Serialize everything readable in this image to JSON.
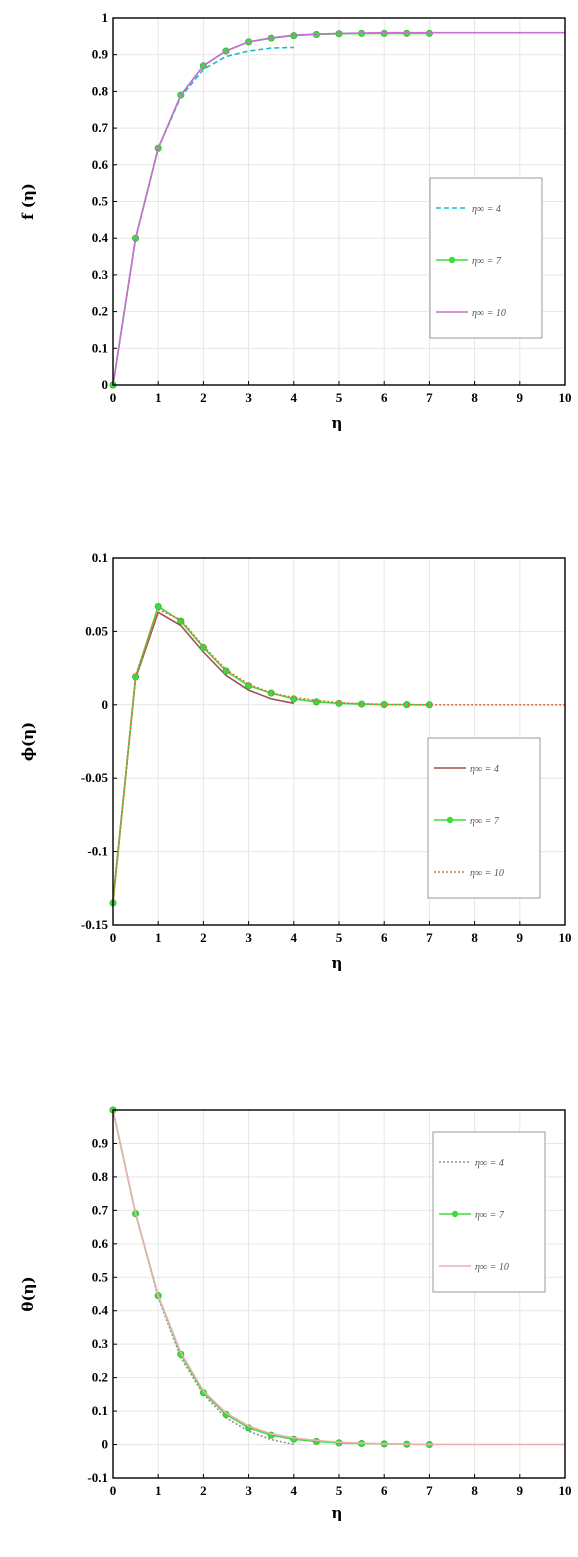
{
  "chart_data": [
    {
      "type": "line",
      "ylabel": "f (η)",
      "xlabel": "η",
      "xlim": [
        0,
        10
      ],
      "ylim": [
        0,
        1
      ],
      "xticks": [
        "0",
        "1",
        "2",
        "3",
        "4",
        "5",
        "6",
        "7",
        "8",
        "9",
        "10"
      ],
      "yticks": [
        "0",
        "0.1",
        "0.2",
        "0.3",
        "0.4",
        "0.5",
        "0.6",
        "0.7",
        "0.8",
        "0.9",
        "1"
      ],
      "grid": true,
      "legend_position": "right",
      "series": [
        {
          "name": "η∞ = 4",
          "style": "dashed",
          "color": "#1fb8d0",
          "x": [
            0,
            0.5,
            1,
            1.5,
            2,
            2.5,
            3,
            3.5,
            4
          ],
          "y": [
            0,
            0.4,
            0.645,
            0.785,
            0.86,
            0.895,
            0.91,
            0.918,
            0.92
          ]
        },
        {
          "name": "η∞ = 7",
          "style": "markers",
          "color": "#3ddc3d",
          "x": [
            0,
            0.5,
            1,
            1.5,
            2,
            2.5,
            3,
            3.5,
            4,
            4.5,
            5,
            5.5,
            6,
            6.5,
            7
          ],
          "y": [
            0,
            0.4,
            0.645,
            0.79,
            0.87,
            0.91,
            0.935,
            0.945,
            0.952,
            0.955,
            0.957,
            0.958,
            0.958,
            0.958,
            0.958
          ]
        },
        {
          "name": "η∞ = 10",
          "style": "solid",
          "color": "#c86fd0",
          "x": [
            0,
            0.5,
            1,
            1.5,
            2,
            2.5,
            3,
            3.5,
            4,
            4.5,
            5,
            5.5,
            6,
            6.5,
            7,
            8,
            9,
            10
          ],
          "y": [
            0,
            0.4,
            0.645,
            0.79,
            0.87,
            0.91,
            0.935,
            0.946,
            0.953,
            0.956,
            0.958,
            0.959,
            0.96,
            0.96,
            0.96,
            0.96,
            0.96,
            0.96
          ]
        }
      ]
    },
    {
      "type": "line",
      "ylabel": "ϕ(η)",
      "xlabel": "η",
      "xlim": [
        0,
        10
      ],
      "ylim": [
        -0.15,
        0.1
      ],
      "xticks": [
        "0",
        "1",
        "2",
        "3",
        "4",
        "5",
        "6",
        "7",
        "8",
        "9",
        "10"
      ],
      "yticks": [
        "-0.15",
        "-0.1",
        "-0.05",
        "0",
        "0.05",
        "0.1"
      ],
      "grid": true,
      "legend_position": "right",
      "series": [
        {
          "name": "η∞ = 4",
          "style": "solid",
          "color": "#a05050",
          "x": [
            0,
            0.5,
            1,
            1.5,
            2,
            2.5,
            3,
            3.5,
            4
          ],
          "y": [
            -0.133,
            0.018,
            0.063,
            0.054,
            0.036,
            0.02,
            0.01,
            0.004,
            0.001
          ]
        },
        {
          "name": "η∞ = 7",
          "style": "markers",
          "color": "#3ddc3d",
          "x": [
            0,
            0.5,
            1,
            1.5,
            2,
            2.5,
            3,
            3.5,
            4,
            4.5,
            5,
            5.5,
            6,
            6.5,
            7
          ],
          "y": [
            -0.135,
            0.019,
            0.067,
            0.057,
            0.039,
            0.023,
            0.013,
            0.008,
            0.004,
            0.002,
            0.001,
            0.0005,
            0.0002,
            0.0001,
            0
          ]
        },
        {
          "name": "η∞ = 10",
          "style": "dotted",
          "color": "#e07040",
          "x": [
            0,
            0.5,
            1,
            1.5,
            2,
            2.5,
            3,
            3.5,
            4,
            4.5,
            5,
            5.5,
            6,
            6.5,
            7,
            8,
            9,
            10
          ],
          "y": [
            -0.136,
            0.02,
            0.065,
            0.058,
            0.04,
            0.024,
            0.014,
            0.008,
            0.005,
            0.003,
            0.0015,
            0.0007,
            0.0003,
            0.0001,
            0,
            0,
            0,
            0
          ]
        }
      ]
    },
    {
      "type": "line",
      "ylabel": "θ(η)",
      "xlabel": "η",
      "xlim": [
        0,
        10
      ],
      "ylim": [
        -0.1,
        1
      ],
      "xticks": [
        "0",
        "1",
        "2",
        "3",
        "4",
        "5",
        "6",
        "7",
        "8",
        "9",
        "10"
      ],
      "yticks": [
        "-0.1",
        "0",
        "0.1",
        "0.2",
        "0.3",
        "0.4",
        "0.5",
        "0.6",
        "0.7",
        "0.8",
        "0.9"
      ],
      "grid": true,
      "legend_position": "top-right",
      "series": [
        {
          "name": "η∞ = 4",
          "style": "dotted",
          "color": "#909090",
          "x": [
            0,
            0.5,
            1,
            1.5,
            2,
            2.5,
            3,
            3.5,
            4
          ],
          "y": [
            1,
            0.69,
            0.44,
            0.26,
            0.15,
            0.08,
            0.04,
            0.015,
            0
          ]
        },
        {
          "name": "η∞ = 7",
          "style": "markers",
          "color": "#3ddc3d",
          "x": [
            0,
            0.5,
            1,
            1.5,
            2,
            2.5,
            3,
            3.5,
            4,
            4.5,
            5,
            5.5,
            6,
            6.5,
            7
          ],
          "y": [
            1,
            0.69,
            0.445,
            0.27,
            0.155,
            0.09,
            0.05,
            0.028,
            0.016,
            0.009,
            0.005,
            0.003,
            0.002,
            0.001,
            0
          ]
        },
        {
          "name": "η∞ = 10",
          "style": "solid",
          "color": "#e8b0b0",
          "x": [
            0,
            0.5,
            1,
            1.5,
            2,
            2.5,
            3,
            3.5,
            4,
            4.5,
            5,
            5.5,
            6,
            6.5,
            7,
            8,
            9,
            10
          ],
          "y": [
            1,
            0.69,
            0.445,
            0.275,
            0.16,
            0.095,
            0.055,
            0.032,
            0.02,
            0.012,
            0.007,
            0.004,
            0.002,
            0.001,
            0.0005,
            0,
            0,
            0
          ]
        }
      ]
    }
  ]
}
